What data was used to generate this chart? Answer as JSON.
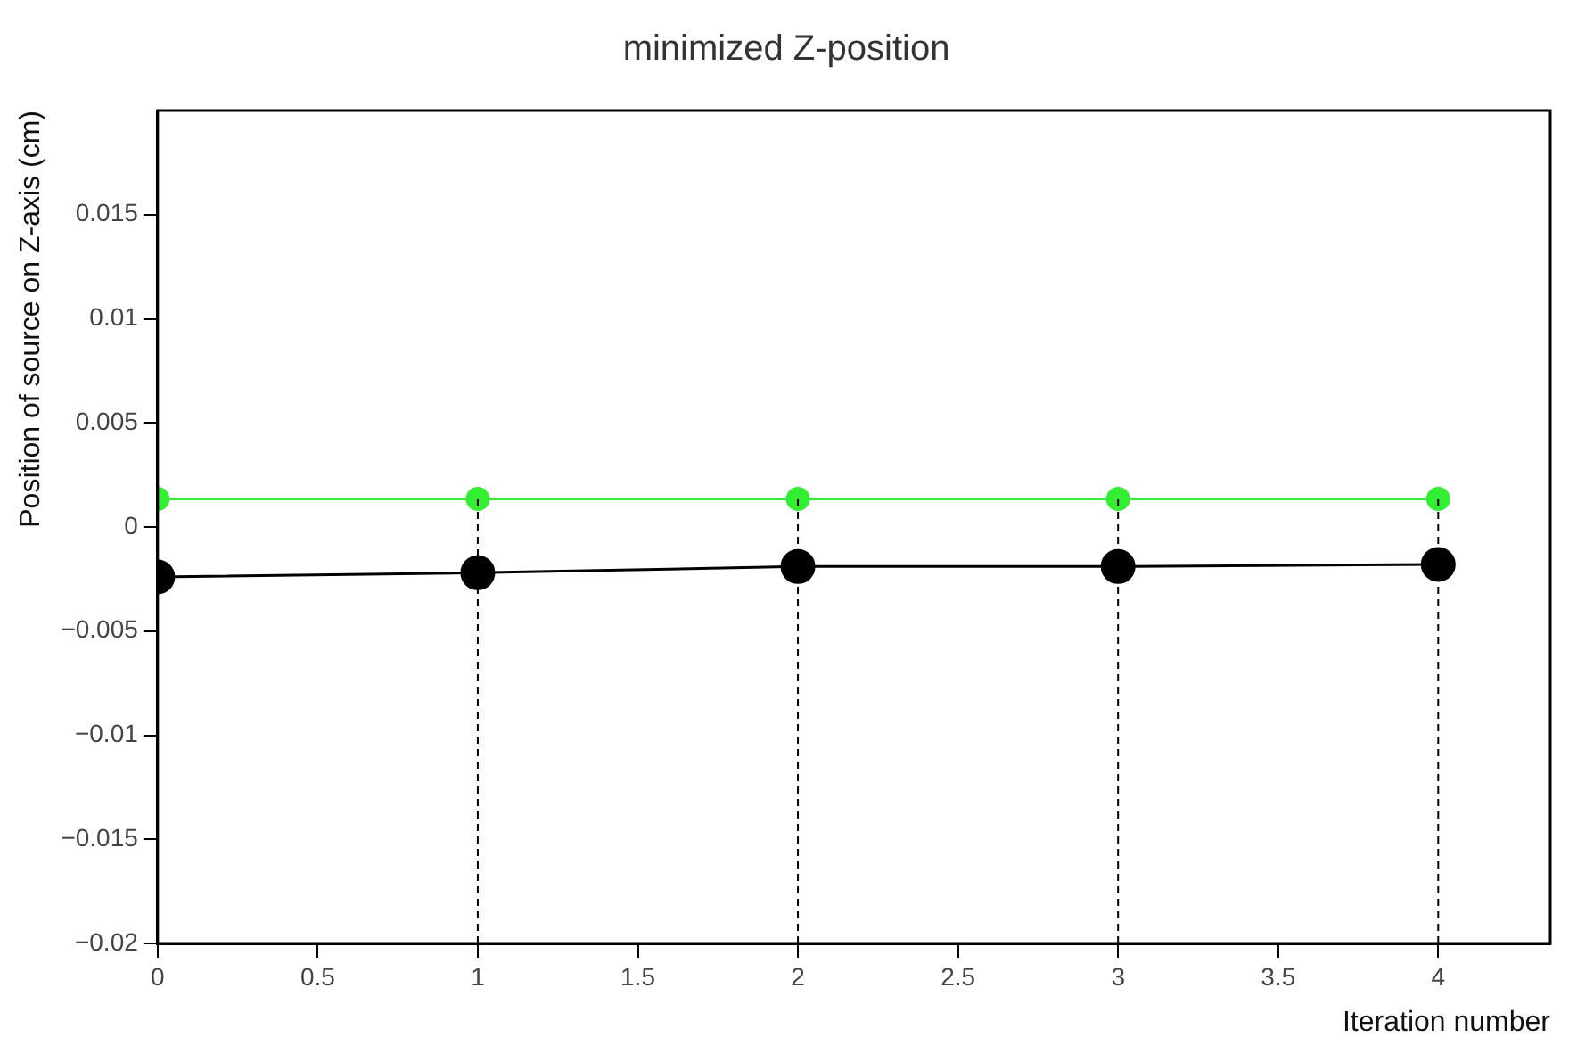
{
  "chart_data": {
    "type": "line",
    "title": "minimized Z-position",
    "xlabel": "Iteration number",
    "ylabel": "Position of source on Z-axis (cm)",
    "x": [
      0,
      1,
      2,
      3,
      4
    ],
    "series": [
      {
        "color": "#33ee33",
        "values": [
          0.00135,
          0.00135,
          0.00135,
          0.00135,
          0.00135
        ]
      },
      {
        "color": "#000000",
        "values": [
          -0.0024,
          -0.0022,
          -0.0019,
          -0.0019,
          -0.0018
        ]
      }
    ],
    "xlim": [
      0,
      4.35
    ],
    "xticks": [
      0,
      0.5,
      1,
      1.5,
      2,
      2.5,
      3,
      3.5,
      4
    ],
    "ylim": [
      -0.02,
      0.02
    ],
    "yticks": [
      -0.02,
      -0.015,
      -0.01,
      -0.005,
      0,
      0.005,
      0.01,
      0.015
    ],
    "ref_lines": [
      {
        "axis": "x",
        "value": 1,
        "color": "#000000",
        "line_style": "dashed"
      },
      {
        "axis": "x",
        "value": 2,
        "color": "#000000",
        "line_style": "dashed"
      },
      {
        "axis": "x",
        "value": 3,
        "color": "#000000",
        "line_style": "dashed"
      },
      {
        "axis": "x",
        "value": 4,
        "color": "#000000",
        "line_style": "dashed"
      }
    ],
    "marker": "circle",
    "line_style": "solid",
    "grid": false,
    "legend": false
  }
}
